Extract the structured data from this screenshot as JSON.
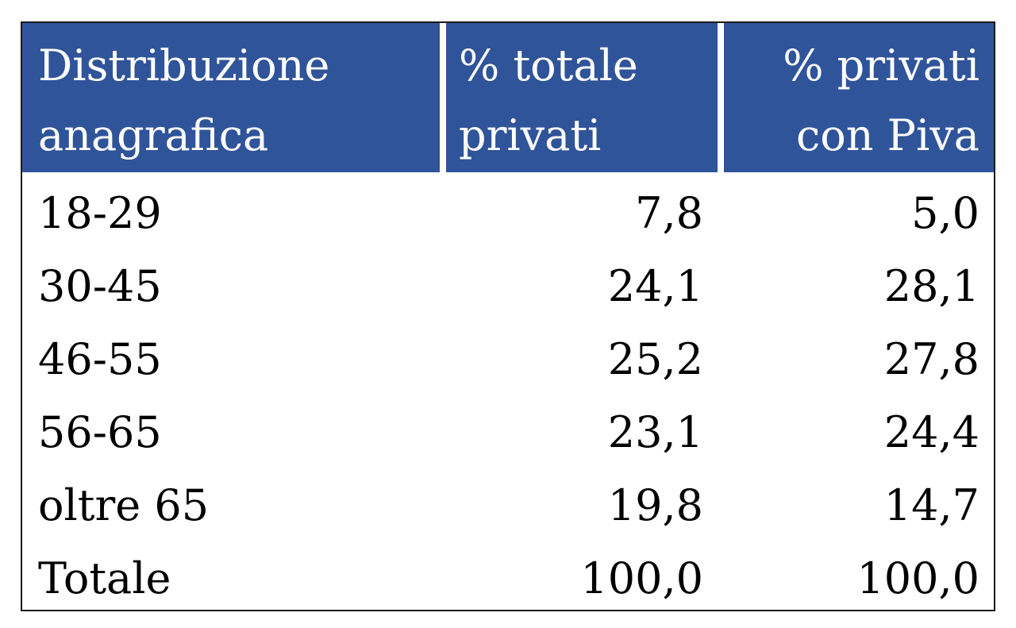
{
  "table": {
    "headers": [
      [
        "Distribuzione",
        "anagrafica"
      ],
      [
        "% totale",
        "privati"
      ],
      [
        "% privati",
        "con Piva"
      ]
    ],
    "rows": [
      [
        "18-29",
        "7,8",
        "5,0"
      ],
      [
        "30-45",
        "24,1",
        "28,1"
      ],
      [
        "46-55",
        "25,2",
        "27,8"
      ],
      [
        "56-65",
        "23,1",
        "24,4"
      ],
      [
        "oltre 65",
        "19,8",
        "14,7"
      ],
      [
        "Totale",
        "100,0",
        "100,0"
      ]
    ],
    "colors": {
      "header_bg": "#30549a",
      "header_text": "#ffffff",
      "border": "#1a1a1a"
    }
  }
}
